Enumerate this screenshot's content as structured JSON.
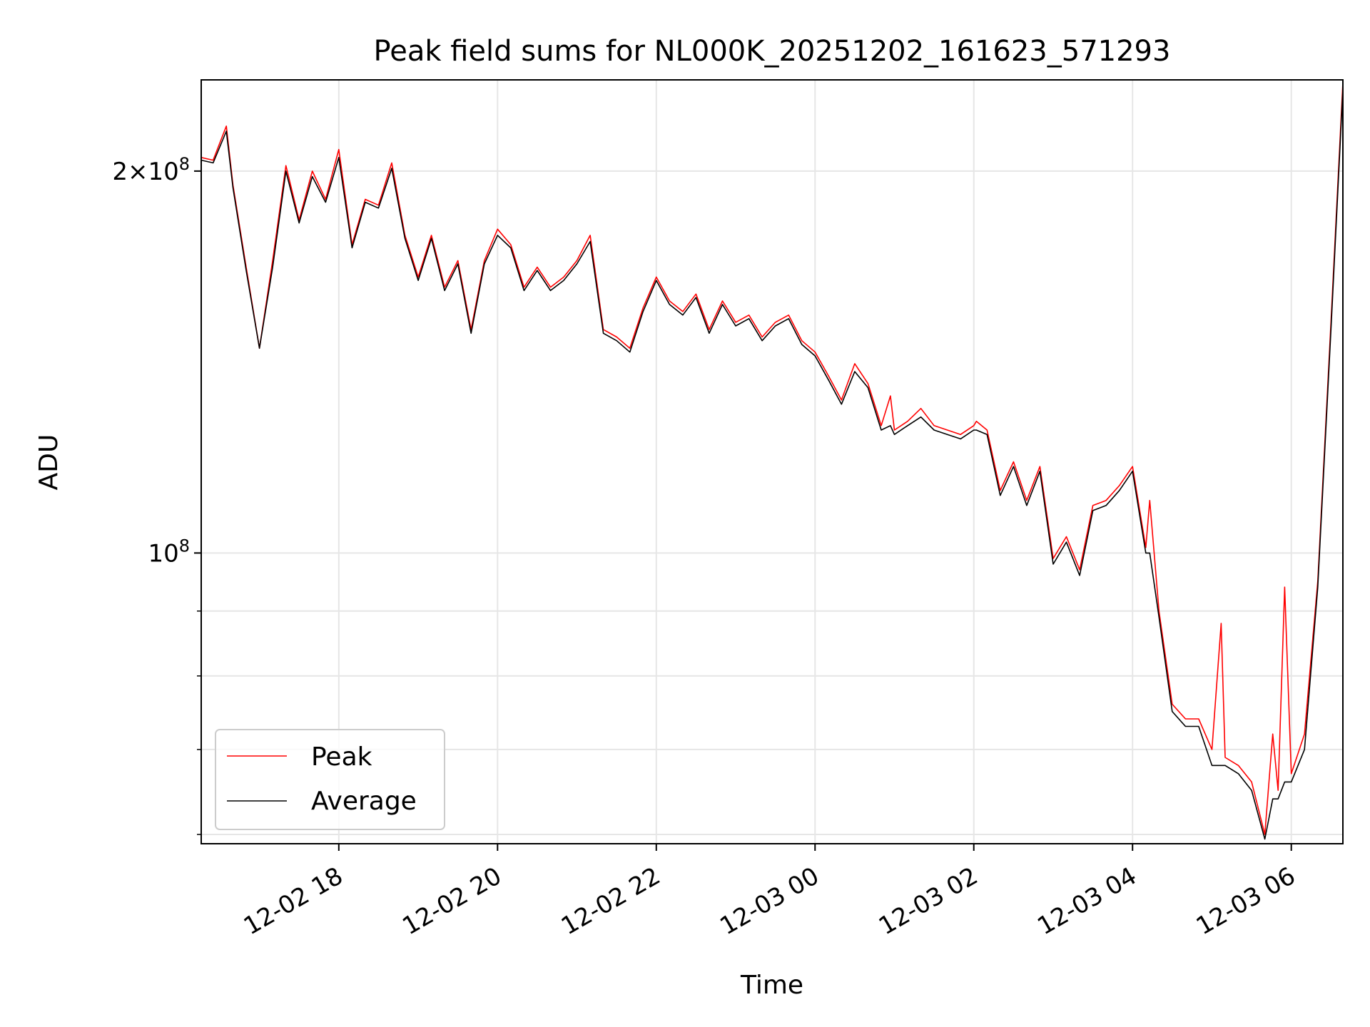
{
  "chart_data": {
    "type": "line",
    "title": "Peak field sums for NL000K_20251202_161623_571293",
    "xlabel": "Time",
    "ylabel": "ADU",
    "yscale": "log",
    "xlim": [
      "2025-12-02 16:16",
      "2025-12-03 06:39"
    ],
    "ylim": [
      59000000,
      236000000
    ],
    "grid": true,
    "legend_position": "lower-left",
    "x_ticks": [
      "12-02 18",
      "12-02 20",
      "12-02 22",
      "12-03 00",
      "12-03 02",
      "12-03 04",
      "12-03 06"
    ],
    "y_major_ticks": [
      {
        "value": 100000000,
        "label": "10^8"
      },
      {
        "value": 200000000,
        "label": "2×10^8"
      }
    ],
    "y_minor_ticks": [
      60000000,
      70000000,
      80000000,
      90000000
    ],
    "series": [
      {
        "name": "Peak",
        "color": "#ff0000",
        "x": [
          "2025-12-02 16:16",
          "2025-12-02 16:25",
          "2025-12-02 16:35",
          "2025-12-02 16:40",
          "2025-12-02 16:50",
          "2025-12-02 17:00",
          "2025-12-02 17:10",
          "2025-12-02 17:20",
          "2025-12-02 17:30",
          "2025-12-02 17:40",
          "2025-12-02 17:50",
          "2025-12-02 18:00",
          "2025-12-02 18:10",
          "2025-12-02 18:20",
          "2025-12-02 18:30",
          "2025-12-02 18:40",
          "2025-12-02 18:50",
          "2025-12-02 19:00",
          "2025-12-02 19:10",
          "2025-12-02 19:20",
          "2025-12-02 19:30",
          "2025-12-02 19:40",
          "2025-12-02 19:50",
          "2025-12-02 20:00",
          "2025-12-02 20:10",
          "2025-12-02 20:20",
          "2025-12-02 20:30",
          "2025-12-02 20:40",
          "2025-12-02 20:50",
          "2025-12-02 21:00",
          "2025-12-02 21:10",
          "2025-12-02 21:20",
          "2025-12-02 21:30",
          "2025-12-02 21:40",
          "2025-12-02 21:50",
          "2025-12-02 22:00",
          "2025-12-02 22:10",
          "2025-12-02 22:20",
          "2025-12-02 22:30",
          "2025-12-02 22:40",
          "2025-12-02 22:50",
          "2025-12-02 23:00",
          "2025-12-02 23:10",
          "2025-12-02 23:20",
          "2025-12-02 23:30",
          "2025-12-02 23:40",
          "2025-12-02 23:50",
          "2025-12-03 00:00",
          "2025-12-03 00:10",
          "2025-12-03 00:20",
          "2025-12-03 00:30",
          "2025-12-03 00:40",
          "2025-12-03 00:50",
          "2025-12-03 00:57",
          "2025-12-03 01:00",
          "2025-12-03 01:10",
          "2025-12-03 01:20",
          "2025-12-03 01:30",
          "2025-12-03 01:40",
          "2025-12-03 01:50",
          "2025-12-03 02:00",
          "2025-12-03 02:02",
          "2025-12-03 02:10",
          "2025-12-03 02:20",
          "2025-12-03 02:30",
          "2025-12-03 02:40",
          "2025-12-03 02:50",
          "2025-12-03 03:00",
          "2025-12-03 03:10",
          "2025-12-03 03:20",
          "2025-12-03 03:30",
          "2025-12-03 03:40",
          "2025-12-03 03:50",
          "2025-12-03 04:00",
          "2025-12-03 04:10",
          "2025-12-03 04:13",
          "2025-12-03 04:20",
          "2025-12-03 04:30",
          "2025-12-03 04:40",
          "2025-12-03 04:50",
          "2025-12-03 05:00",
          "2025-12-03 05:07",
          "2025-12-03 05:10",
          "2025-12-03 05:20",
          "2025-12-03 05:30",
          "2025-12-03 05:40",
          "2025-12-03 05:46",
          "2025-12-03 05:50",
          "2025-12-03 05:55",
          "2025-12-03 06:00",
          "2025-12-03 06:10",
          "2025-12-03 06:20",
          "2025-12-03 06:30",
          "2025-12-03 06:39"
        ],
        "y": [
          205000000,
          204000000,
          217000000,
          195000000,
          168000000,
          145000000,
          170000000,
          202000000,
          183000000,
          200000000,
          190000000,
          208000000,
          175000000,
          190000000,
          188000000,
          203000000,
          178000000,
          165000000,
          178000000,
          162000000,
          170000000,
          150000000,
          170000000,
          180000000,
          175000000,
          162000000,
          168000000,
          162000000,
          165000000,
          170000000,
          178000000,
          150000000,
          148000000,
          145000000,
          156000000,
          165000000,
          158000000,
          155000000,
          160000000,
          150000000,
          158000000,
          152000000,
          154000000,
          148000000,
          152000000,
          154000000,
          147000000,
          144000000,
          138000000,
          132000000,
          141000000,
          136000000,
          126000000,
          133000000,
          125000000,
          127000000,
          130000000,
          126000000,
          125000000,
          124000000,
          126000000,
          127000000,
          125000000,
          112000000,
          118000000,
          110000000,
          117000000,
          99000000,
          103000000,
          97000000,
          109000000,
          110000000,
          113000000,
          117000000,
          101000000,
          110000000,
          90000000,
          76000000,
          74000000,
          74000000,
          70000000,
          88000000,
          69000000,
          68000000,
          66000000,
          60000000,
          72000000,
          65000000,
          94000000,
          67000000,
          72000000,
          95000000,
          152000000,
          235000000
        ]
      },
      {
        "name": "Average",
        "color": "#000000",
        "x": [
          "2025-12-02 16:16",
          "2025-12-02 16:25",
          "2025-12-02 16:35",
          "2025-12-02 16:40",
          "2025-12-02 16:50",
          "2025-12-02 17:00",
          "2025-12-02 17:10",
          "2025-12-02 17:20",
          "2025-12-02 17:30",
          "2025-12-02 17:40",
          "2025-12-02 17:50",
          "2025-12-02 18:00",
          "2025-12-02 18:10",
          "2025-12-02 18:20",
          "2025-12-02 18:30",
          "2025-12-02 18:40",
          "2025-12-02 18:50",
          "2025-12-02 19:00",
          "2025-12-02 19:10",
          "2025-12-02 19:20",
          "2025-12-02 19:30",
          "2025-12-02 19:40",
          "2025-12-02 19:50",
          "2025-12-02 20:00",
          "2025-12-02 20:10",
          "2025-12-02 20:20",
          "2025-12-02 20:30",
          "2025-12-02 20:40",
          "2025-12-02 20:50",
          "2025-12-02 21:00",
          "2025-12-02 21:10",
          "2025-12-02 21:20",
          "2025-12-02 21:30",
          "2025-12-02 21:40",
          "2025-12-02 21:50",
          "2025-12-02 22:00",
          "2025-12-02 22:10",
          "2025-12-02 22:20",
          "2025-12-02 22:30",
          "2025-12-02 22:40",
          "2025-12-02 22:50",
          "2025-12-02 23:00",
          "2025-12-02 23:10",
          "2025-12-02 23:20",
          "2025-12-02 23:30",
          "2025-12-02 23:40",
          "2025-12-02 23:50",
          "2025-12-03 00:00",
          "2025-12-03 00:10",
          "2025-12-03 00:20",
          "2025-12-03 00:30",
          "2025-12-03 00:40",
          "2025-12-03 00:50",
          "2025-12-03 00:57",
          "2025-12-03 01:00",
          "2025-12-03 01:10",
          "2025-12-03 01:20",
          "2025-12-03 01:30",
          "2025-12-03 01:40",
          "2025-12-03 01:50",
          "2025-12-03 02:00",
          "2025-12-03 02:02",
          "2025-12-03 02:10",
          "2025-12-03 02:20",
          "2025-12-03 02:30",
          "2025-12-03 02:40",
          "2025-12-03 02:50",
          "2025-12-03 03:00",
          "2025-12-03 03:10",
          "2025-12-03 03:20",
          "2025-12-03 03:30",
          "2025-12-03 03:40",
          "2025-12-03 03:50",
          "2025-12-03 04:00",
          "2025-12-03 04:10",
          "2025-12-03 04:13",
          "2025-12-03 04:20",
          "2025-12-03 04:30",
          "2025-12-03 04:40",
          "2025-12-03 04:50",
          "2025-12-03 05:00",
          "2025-12-03 05:07",
          "2025-12-03 05:10",
          "2025-12-03 05:20",
          "2025-12-03 05:30",
          "2025-12-03 05:40",
          "2025-12-03 05:46",
          "2025-12-03 05:50",
          "2025-12-03 05:55",
          "2025-12-03 06:00",
          "2025-12-03 06:10",
          "2025-12-03 06:20",
          "2025-12-03 06:30",
          "2025-12-03 06:39"
        ],
        "y": [
          204000000,
          203000000,
          215000000,
          194000000,
          167000000,
          145000000,
          168000000,
          200000000,
          182000000,
          198000000,
          189000000,
          205000000,
          174000000,
          189000000,
          187000000,
          201000000,
          177000000,
          164000000,
          177000000,
          161000000,
          169000000,
          149000000,
          169000000,
          178000000,
          174000000,
          161000000,
          167000000,
          161000000,
          164000000,
          169000000,
          176000000,
          149000000,
          147000000,
          144000000,
          155000000,
          164000000,
          157000000,
          154000000,
          159000000,
          149000000,
          157000000,
          151000000,
          153000000,
          147000000,
          151000000,
          153000000,
          146000000,
          143000000,
          137000000,
          131000000,
          139000000,
          135000000,
          125000000,
          126000000,
          124000000,
          126000000,
          128000000,
          125000000,
          124000000,
          123000000,
          125000000,
          125000000,
          124000000,
          111000000,
          117000000,
          109000000,
          116000000,
          98000000,
          102000000,
          96000000,
          108000000,
          109000000,
          112000000,
          116000000,
          100000000,
          100000000,
          89000000,
          75000000,
          73000000,
          73000000,
          68000000,
          68000000,
          68000000,
          67000000,
          65000000,
          59500000,
          64000000,
          64000000,
          66000000,
          66000000,
          70000000,
          94000000,
          150000000,
          232000000
        ]
      }
    ]
  }
}
